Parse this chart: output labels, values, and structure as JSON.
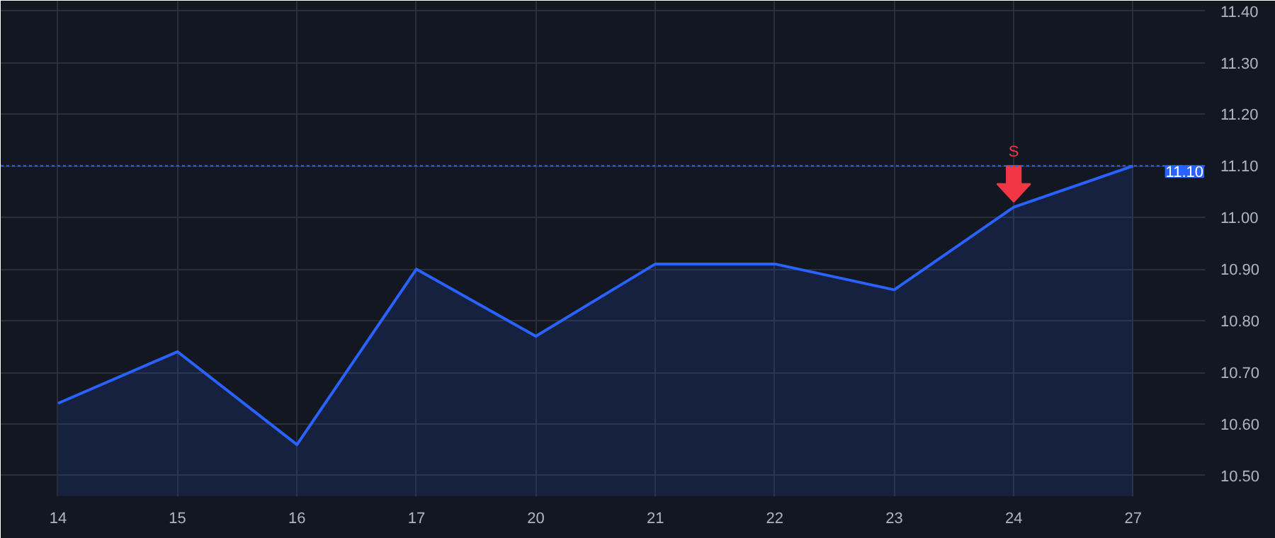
{
  "chart_data": {
    "type": "area",
    "categories": [
      "14",
      "15",
      "16",
      "17",
      "20",
      "21",
      "22",
      "23",
      "24",
      "27"
    ],
    "values": [
      10.64,
      10.74,
      10.56,
      10.9,
      10.77,
      10.91,
      10.91,
      10.86,
      11.02,
      11.1
    ],
    "color": "#2962ff",
    "ylim": [
      10.46,
      11.42
    ],
    "yticks": [
      {
        "value": 10.5,
        "label": "10.50"
      },
      {
        "value": 10.6,
        "label": "10.60"
      },
      {
        "value": 10.7,
        "label": "10.70"
      },
      {
        "value": 10.8,
        "label": "10.80"
      },
      {
        "value": 10.9,
        "label": "10.90"
      },
      {
        "value": 11.0,
        "label": "11.00"
      },
      {
        "value": 11.1,
        "label": "11.10"
      },
      {
        "value": 11.2,
        "label": "11.20"
      },
      {
        "value": 11.3,
        "label": "11.30"
      },
      {
        "value": 11.4,
        "label": "11.40"
      }
    ],
    "grid": true,
    "ref_lines": [
      {
        "axis": "y",
        "value": 11.1,
        "label": "11.10",
        "color": "#2962ff",
        "line_style": "dotted"
      }
    ],
    "annotations": [
      {
        "text": "S",
        "x": "24",
        "y": 11.02
      }
    ]
  }
}
